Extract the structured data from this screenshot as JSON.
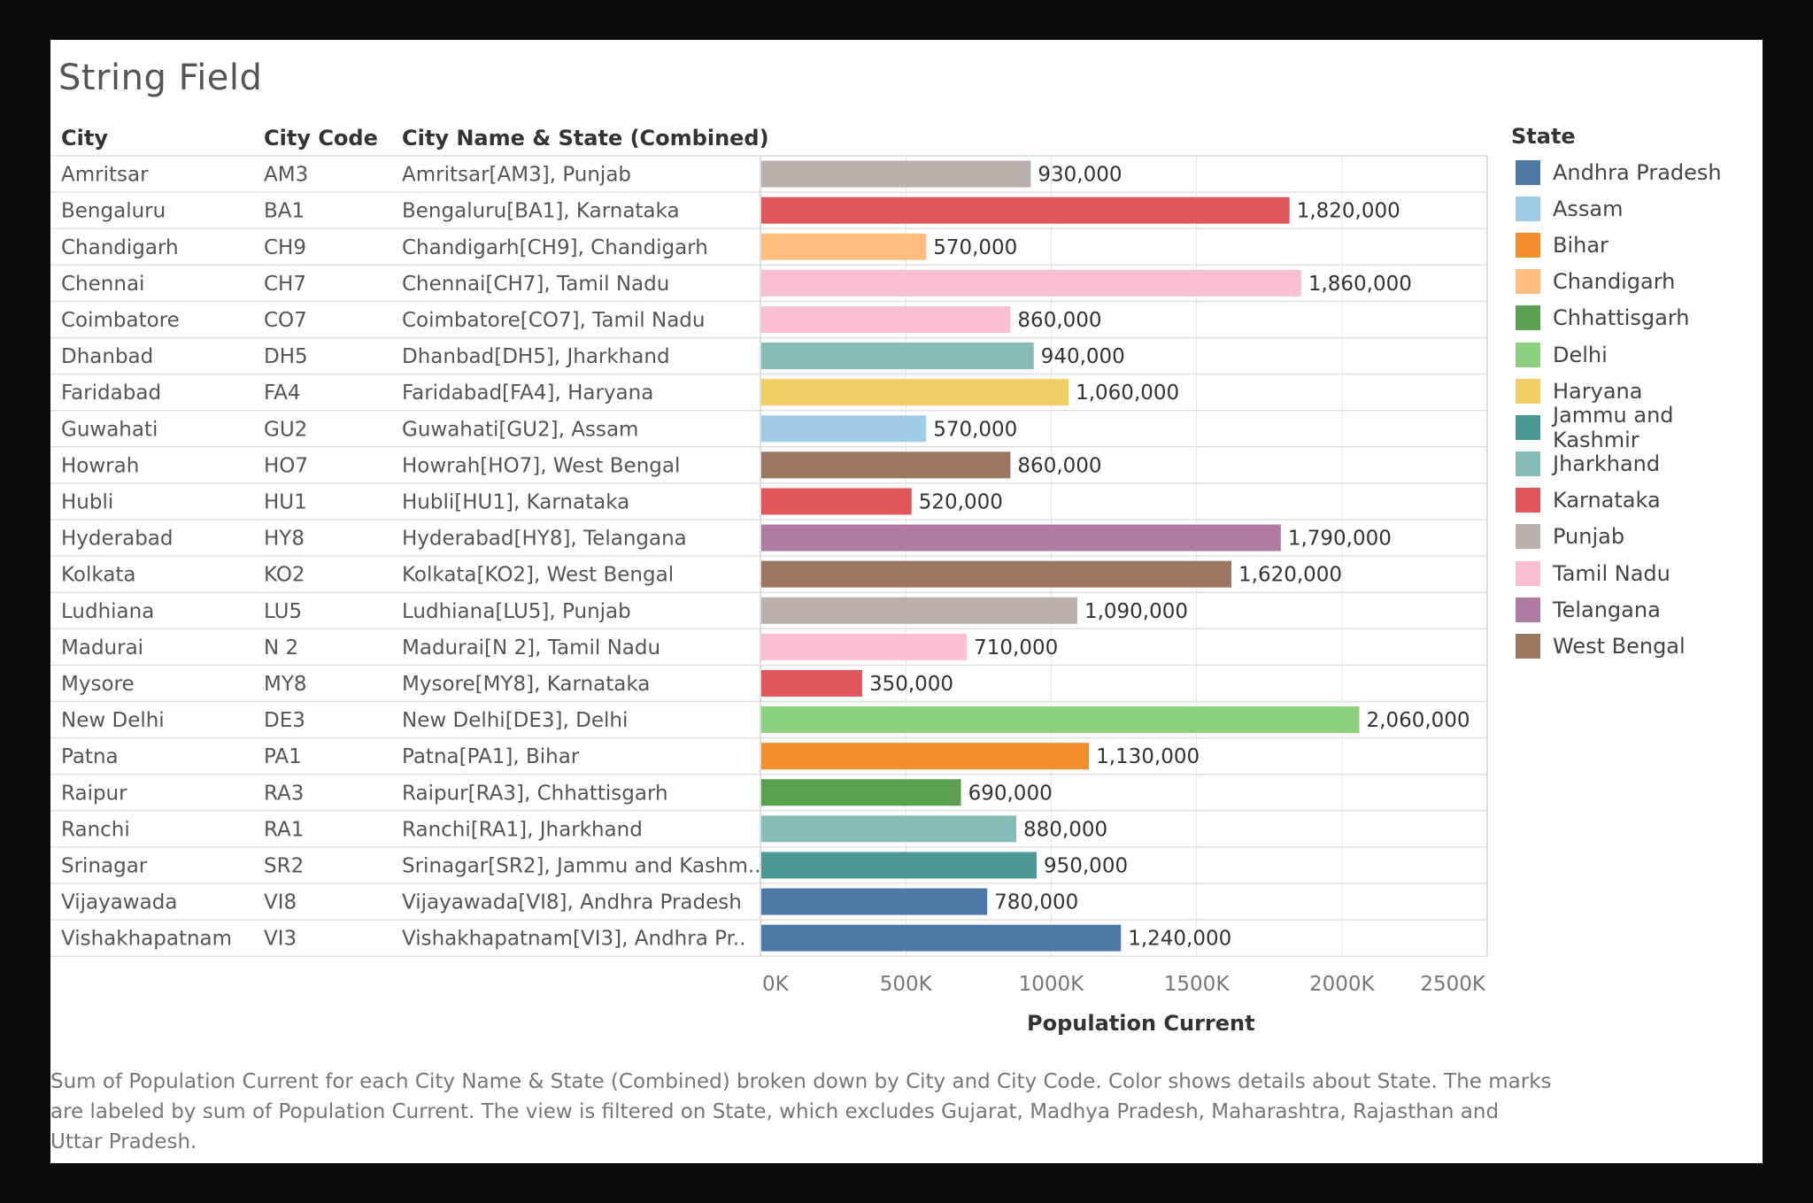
{
  "title": "String Field",
  "columns": {
    "city": "City",
    "code": "City Code",
    "combined": "City Name & State (Combined)"
  },
  "legend": {
    "title": "State",
    "items": [
      {
        "name": "Andhra Pradesh",
        "color": "#4e79a7"
      },
      {
        "name": "Assam",
        "color": "#a0cbe8"
      },
      {
        "name": "Bihar",
        "color": "#f28e2b"
      },
      {
        "name": "Chandigarh",
        "color": "#ffbe7d"
      },
      {
        "name": "Chhattisgarh",
        "color": "#59a14f"
      },
      {
        "name": "Delhi",
        "color": "#8cd17d"
      },
      {
        "name": "Haryana",
        "color": "#f1ce63"
      },
      {
        "name": "Jammu and Kashmir",
        "color": "#499894"
      },
      {
        "name": "Jharkhand",
        "color": "#86bcb6"
      },
      {
        "name": "Karnataka",
        "color": "#e15759"
      },
      {
        "name": "Punjab",
        "color": "#bab0ac"
      },
      {
        "name": "Tamil Nadu",
        "color": "#fabfd2"
      },
      {
        "name": "Telangana",
        "color": "#b07aa1"
      },
      {
        "name": "West Bengal",
        "color": "#9d7660"
      }
    ]
  },
  "caption": "Sum of Population Current for each City Name & State (Combined) broken down by City and City Code.  Color shows details about State.  The marks are labeled by sum of Population Current. The view is filtered on State, which excludes Gujarat, Madhya Pradesh, Maharashtra, Rajasthan and Uttar Pradesh.",
  "chart_data": {
    "type": "bar",
    "orientation": "horizontal",
    "xlabel": "Population Current",
    "xlim": [
      0,
      2500000
    ],
    "xticks": [
      0,
      500000,
      1000000,
      1500000,
      2000000,
      2500000
    ],
    "xtick_labels": [
      "0K",
      "500K",
      "1000K",
      "1500K",
      "2000K",
      "2500K"
    ],
    "grid": true,
    "legend": "right",
    "rows": [
      {
        "city": "Amritsar",
        "code": "AM3",
        "combined": "Amritsar[AM3], Punjab",
        "state": "Punjab",
        "value": 930000,
        "label": "930,000"
      },
      {
        "city": "Bengaluru",
        "code": "BA1",
        "combined": "Bengaluru[BA1], Karnataka",
        "state": "Karnataka",
        "value": 1820000,
        "label": "1,820,000"
      },
      {
        "city": "Chandigarh",
        "code": "CH9",
        "combined": "Chandigarh[CH9], Chandigarh",
        "state": "Chandigarh",
        "value": 570000,
        "label": "570,000"
      },
      {
        "city": "Chennai",
        "code": "CH7",
        "combined": "Chennai[CH7], Tamil Nadu",
        "state": "Tamil Nadu",
        "value": 1860000,
        "label": "1,860,000"
      },
      {
        "city": "Coimbatore",
        "code": "CO7",
        "combined": "Coimbatore[CO7], Tamil Nadu",
        "state": "Tamil Nadu",
        "value": 860000,
        "label": "860,000"
      },
      {
        "city": "Dhanbad",
        "code": "DH5",
        "combined": "Dhanbad[DH5], Jharkhand",
        "state": "Jharkhand",
        "value": 940000,
        "label": "940,000"
      },
      {
        "city": "Faridabad",
        "code": "FA4",
        "combined": "Faridabad[FA4], Haryana",
        "state": "Haryana",
        "value": 1060000,
        "label": "1,060,000"
      },
      {
        "city": "Guwahati",
        "code": "GU2",
        "combined": "Guwahati[GU2], Assam",
        "state": "Assam",
        "value": 570000,
        "label": "570,000"
      },
      {
        "city": "Howrah",
        "code": "HO7",
        "combined": "Howrah[HO7], West Bengal",
        "state": "West Bengal",
        "value": 860000,
        "label": "860,000"
      },
      {
        "city": "Hubli",
        "code": "HU1",
        "combined": "Hubli[HU1], Karnataka",
        "state": "Karnataka",
        "value": 520000,
        "label": "520,000"
      },
      {
        "city": "Hyderabad",
        "code": "HY8",
        "combined": "Hyderabad[HY8], Telangana",
        "state": "Telangana",
        "value": 1790000,
        "label": "1,790,000"
      },
      {
        "city": "Kolkata",
        "code": "KO2",
        "combined": "Kolkata[KO2], West Bengal",
        "state": "West Bengal",
        "value": 1620000,
        "label": "1,620,000"
      },
      {
        "city": "Ludhiana",
        "code": "LU5",
        "combined": "Ludhiana[LU5], Punjab",
        "state": "Punjab",
        "value": 1090000,
        "label": "1,090,000"
      },
      {
        "city": "Madurai",
        "code": "N 2",
        "combined": "Madurai[N 2], Tamil Nadu",
        "state": "Tamil Nadu",
        "value": 710000,
        "label": "710,000"
      },
      {
        "city": "Mysore",
        "code": "MY8",
        "combined": "Mysore[MY8], Karnataka",
        "state": "Karnataka",
        "value": 350000,
        "label": "350,000"
      },
      {
        "city": "New Delhi",
        "code": "DE3",
        "combined": "New Delhi[DE3], Delhi",
        "state": "Delhi",
        "value": 2060000,
        "label": "2,060,000"
      },
      {
        "city": "Patna",
        "code": "PA1",
        "combined": "Patna[PA1], Bihar",
        "state": "Bihar",
        "value": 1130000,
        "label": "1,130,000"
      },
      {
        "city": "Raipur",
        "code": "RA3",
        "combined": "Raipur[RA3], Chhattisgarh",
        "state": "Chhattisgarh",
        "value": 690000,
        "label": "690,000"
      },
      {
        "city": "Ranchi",
        "code": "RA1",
        "combined": "Ranchi[RA1], Jharkhand",
        "state": "Jharkhand",
        "value": 880000,
        "label": "880,000"
      },
      {
        "city": "Srinagar",
        "code": "SR2",
        "combined": "Srinagar[SR2], Jammu and Kashm..",
        "state": "Jammu and Kashmir",
        "value": 950000,
        "label": "950,000"
      },
      {
        "city": "Vijayawada",
        "code": "VI8",
        "combined": "Vijayawada[VI8], Andhra Pradesh",
        "state": "Andhra Pradesh",
        "value": 780000,
        "label": "780,000"
      },
      {
        "city": "Vishakhapatnam",
        "code": "VI3",
        "combined": "Vishakhapatnam[VI3], Andhra Pr..",
        "state": "Andhra Pradesh",
        "value": 1240000,
        "label": "1,240,000"
      }
    ]
  }
}
